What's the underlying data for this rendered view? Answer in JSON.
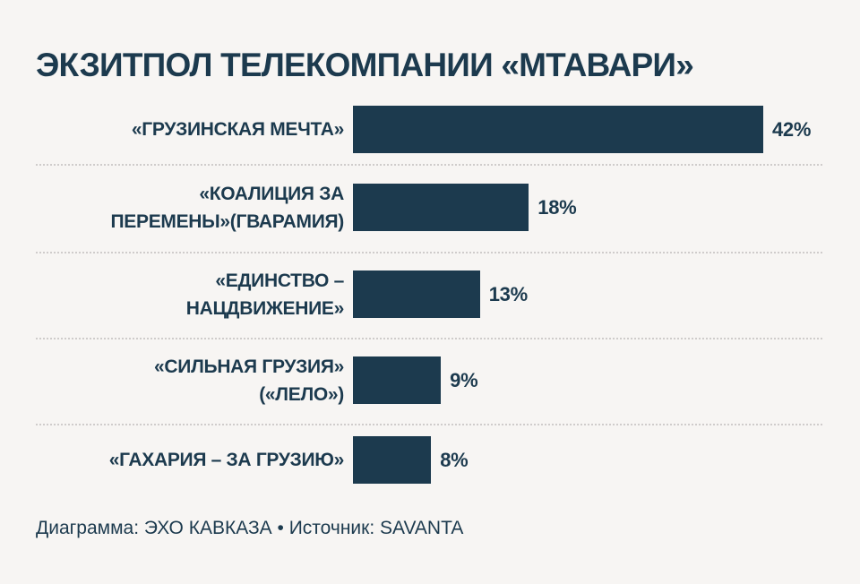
{
  "chart_data": {
    "type": "bar",
    "orientation": "horizontal",
    "title": "ЭКЗИТПОЛ ТЕЛЕКОМПАНИИ «МТАВАРИ»",
    "categories": [
      "«ГРУЗИНСКАЯ МЕЧТА»",
      "«КОАЛИЦИЯ ЗА\nПЕРЕМЕНЫ»(ГВАРАМИЯ)",
      "«ЕДИНСТВО –\nНАЦДВИЖЕНИЕ»",
      "«СИЛЬНАЯ ГРУЗИЯ»\n(«ЛЕЛО»)",
      "«ГАХАРИЯ – ЗА ГРУЗИЮ»"
    ],
    "values": [
      42,
      18,
      13,
      9,
      8
    ],
    "value_labels": [
      "42%",
      "18%",
      "13%",
      "9%",
      "8%"
    ],
    "unit": "%",
    "xlim": [
      0,
      42
    ],
    "grid": false,
    "bar_color": "#1c3a4e",
    "background": "#f7f5f3"
  },
  "footer": "Диаграмма: ЭХО КАВКАЗА • Источник: SAVANTA"
}
